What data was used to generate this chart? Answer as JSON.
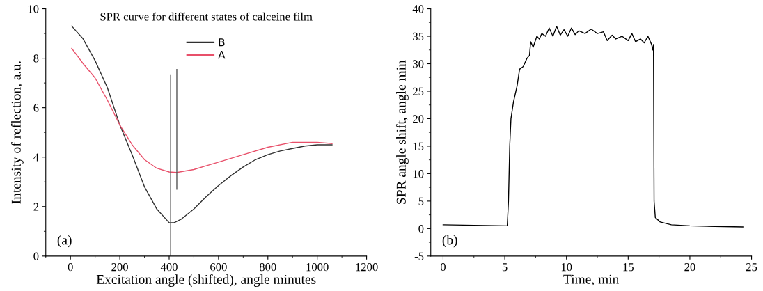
{
  "chart_data": [
    {
      "type": "line",
      "title": "SPR curve for different states of calceine film",
      "xlabel": "Excitation angle (shifted), angle minutes",
      "ylabel": "Intensity of reflection, a.u.",
      "annotations": [
        "(a)"
      ],
      "xlim": [
        -100,
        1200
      ],
      "xticks": [
        0,
        200,
        400,
        600,
        800,
        1000,
        1200
      ],
      "ylim": [
        0,
        10
      ],
      "yticks": [
        0,
        2,
        4,
        6,
        8,
        10
      ],
      "legend": "top",
      "grid": false,
      "series": [
        {
          "name": "B",
          "color": "#303030",
          "x": [
            5,
            50,
            100,
            150,
            200,
            250,
            300,
            350,
            400,
            420,
            450,
            500,
            550,
            600,
            650,
            700,
            750,
            800,
            850,
            900,
            950,
            1000,
            1060
          ],
          "values": [
            9.3,
            8.8,
            7.9,
            6.8,
            5.3,
            4.1,
            2.8,
            1.9,
            1.35,
            1.35,
            1.5,
            1.9,
            2.4,
            2.85,
            3.25,
            3.6,
            3.9,
            4.1,
            4.25,
            4.35,
            4.45,
            4.5,
            4.5
          ]
        },
        {
          "name": "A",
          "color": "#e8506a",
          "x": [
            5,
            50,
            100,
            150,
            200,
            250,
            300,
            350,
            400,
            430,
            500,
            550,
            600,
            700,
            800,
            900,
            950,
            1000,
            1060
          ],
          "values": [
            8.4,
            7.8,
            7.2,
            6.3,
            5.3,
            4.5,
            3.9,
            3.55,
            3.4,
            3.38,
            3.5,
            3.65,
            3.8,
            4.1,
            4.4,
            4.6,
            4.6,
            4.6,
            4.55
          ]
        },
        {
          "color": "#555555",
          "x": [
            406,
            406
          ],
          "values": [
            0,
            7.3
          ]
        },
        {
          "color": "#555555",
          "x": [
            431,
            431
          ],
          "values": [
            2.7,
            7.55
          ]
        }
      ]
    },
    {
      "type": "line",
      "xlabel": "Time, min",
      "ylabel": "SPR angle shift, angle min",
      "annotations": [
        "(b)"
      ],
      "xlim": [
        -1,
        25
      ],
      "xticks": [
        0,
        5,
        10,
        15,
        20,
        25
      ],
      "ylim": [
        -5,
        40
      ],
      "yticks": [
        -5,
        0,
        5,
        10,
        15,
        20,
        25,
        30,
        35,
        40
      ],
      "grid": false,
      "series": [
        {
          "color": "#000000",
          "x": [
            0,
            2.5,
            5.2,
            5.3,
            5.4,
            5.5,
            5.7,
            6.0,
            6.2,
            6.5,
            6.8,
            7.0,
            7.1,
            7.3,
            7.6,
            7.8,
            8.0,
            8.3,
            8.6,
            8.9,
            9.2,
            9.5,
            9.8,
            10.1,
            10.4,
            10.7,
            11.0,
            11.5,
            12.0,
            12.5,
            13.0,
            13.3,
            13.7,
            14.0,
            14.5,
            15.0,
            15.3,
            15.6,
            16.0,
            16.3,
            16.6,
            16.9,
            17.0,
            17.05,
            17.1,
            17.2,
            17.6,
            18.5,
            20,
            22,
            24.3
          ],
          "values": [
            0.7,
            0.6,
            0.5,
            5,
            15,
            20,
            23,
            26,
            29,
            29.5,
            31,
            31.5,
            34,
            33,
            35,
            34.5,
            35.5,
            35,
            36.5,
            35,
            36.8,
            35.2,
            36.2,
            35,
            36.5,
            35.3,
            36,
            35.5,
            36.3,
            35.5,
            35.8,
            34.2,
            35.2,
            34.5,
            35,
            34.2,
            35.5,
            34,
            34.5,
            33.8,
            35,
            33.5,
            32.5,
            33.5,
            5,
            2,
            1.2,
            0.7,
            0.5,
            0.4,
            0.3
          ]
        }
      ]
    }
  ]
}
